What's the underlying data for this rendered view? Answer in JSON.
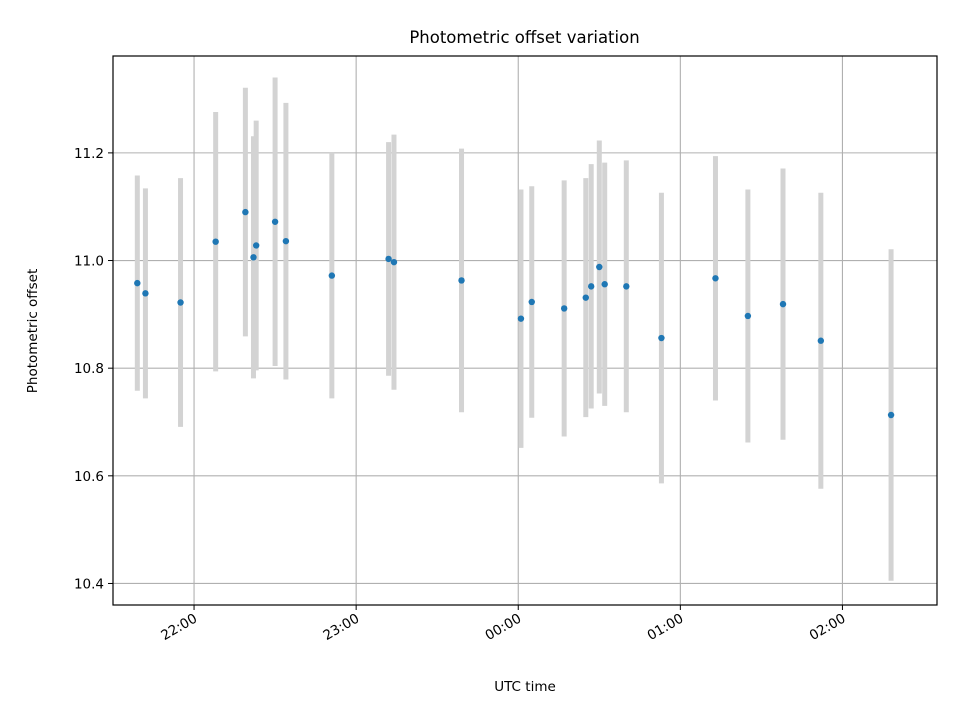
{
  "chart_data": {
    "type": "scatter",
    "title": "Photometric offset variation",
    "xlabel": "UTC time",
    "ylabel": "Photometric offset",
    "ylim": [
      10.36,
      11.38
    ],
    "xlim": [
      "21:30",
      "02:35"
    ],
    "x_ticks": [
      "22:00",
      "23:00",
      "00:00",
      "01:00",
      "02:00"
    ],
    "y_ticks": [
      "10.4",
      "10.6",
      "10.8",
      "11.0",
      "11.2"
    ],
    "grid": true,
    "colors": {
      "points": "#1f77b4",
      "errorbars": "#d3d3d3",
      "grid": "#b0b0b0"
    },
    "series": [
      {
        "points": [
          {
            "x": "21:39",
            "y": 10.958,
            "err": 0.2
          },
          {
            "x": "21:42",
            "y": 10.939,
            "err": 0.195
          },
          {
            "x": "21:55",
            "y": 10.922,
            "err": 0.231
          },
          {
            "x": "22:08",
            "y": 11.035,
            "err": 0.241
          },
          {
            "x": "22:19",
            "y": 11.09,
            "err": 0.231
          },
          {
            "x": "22:22",
            "y": 11.006,
            "err": 0.225
          },
          {
            "x": "22:23",
            "y": 11.028,
            "err": 0.232
          },
          {
            "x": "22:30",
            "y": 11.072,
            "err": 0.268
          },
          {
            "x": "22:34",
            "y": 11.036,
            "err": 0.257
          },
          {
            "x": "22:51",
            "y": 10.972,
            "err": 0.228
          },
          {
            "x": "23:12",
            "y": 11.003,
            "err": 0.217
          },
          {
            "x": "23:14",
            "y": 10.997,
            "err": 0.237
          },
          {
            "x": "23:39",
            "y": 10.963,
            "err": 0.245
          },
          {
            "x": "00:01",
            "y": 10.892,
            "err": 0.24
          },
          {
            "x": "00:05",
            "y": 10.923,
            "err": 0.215
          },
          {
            "x": "00:17",
            "y": 10.911,
            "err": 0.238
          },
          {
            "x": "00:25",
            "y": 10.931,
            "err": 0.222
          },
          {
            "x": "00:27",
            "y": 10.952,
            "err": 0.227
          },
          {
            "x": "00:30",
            "y": 10.988,
            "err": 0.235
          },
          {
            "x": "00:32",
            "y": 10.956,
            "err": 0.226
          },
          {
            "x": "00:40",
            "y": 10.952,
            "err": 0.234
          },
          {
            "x": "00:53",
            "y": 10.856,
            "err": 0.27
          },
          {
            "x": "01:13",
            "y": 10.967,
            "err": 0.227
          },
          {
            "x": "01:25",
            "y": 10.897,
            "err": 0.235
          },
          {
            "x": "01:38",
            "y": 10.919,
            "err": 0.252
          },
          {
            "x": "01:52",
            "y": 10.851,
            "err": 0.275
          },
          {
            "x": "02:18",
            "y": 10.713,
            "err": 0.308
          }
        ]
      }
    ]
  }
}
